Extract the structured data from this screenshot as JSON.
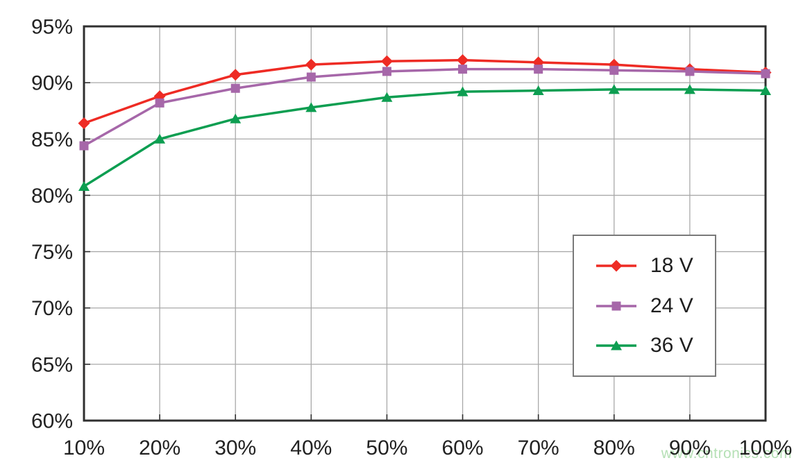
{
  "chart_data": {
    "type": "line",
    "title": "",
    "xlabel": "",
    "ylabel": "",
    "grid": true,
    "legend_position": "inside-right",
    "xlim": [
      10,
      100
    ],
    "ylim": [
      60,
      95
    ],
    "x_values": [
      10,
      20,
      30,
      40,
      50,
      60,
      70,
      80,
      90,
      100
    ],
    "x_tick_labels": [
      "10%",
      "20%",
      "30%",
      "40%",
      "50%",
      "60%",
      "70%",
      "80%",
      "90%",
      "100%"
    ],
    "y_ticks": [
      60,
      65,
      70,
      75,
      80,
      85,
      90,
      95
    ],
    "y_tick_labels": [
      "60%",
      "65%",
      "70%",
      "75%",
      "80%",
      "85%",
      "90%",
      "95%"
    ],
    "series": [
      {
        "name": "18 V",
        "marker": "diamond",
        "color": "#ee2b24",
        "values": [
          86.4,
          88.8,
          90.7,
          91.6,
          91.9,
          92.0,
          91.8,
          91.6,
          91.2,
          90.9
        ]
      },
      {
        "name": "24 V",
        "marker": "square",
        "color": "#a667a9",
        "values": [
          84.4,
          88.2,
          89.5,
          90.5,
          91.0,
          91.2,
          91.2,
          91.1,
          91.0,
          90.8
        ]
      },
      {
        "name": "36 V",
        "marker": "triangle",
        "color": "#0d9e51",
        "values": [
          80.8,
          85.0,
          86.8,
          87.8,
          88.7,
          89.2,
          89.3,
          89.4,
          89.4,
          89.3
        ]
      }
    ]
  },
  "watermark": "www.cntronics.com",
  "colors": {
    "grid": "#a9a9a9",
    "frame": "#2f2f2f",
    "tick": "#2f2f2f",
    "text": "#222222",
    "watermark": "#b5e0b5",
    "legend_border": "#7a7a7a",
    "background": "#ffffff"
  }
}
